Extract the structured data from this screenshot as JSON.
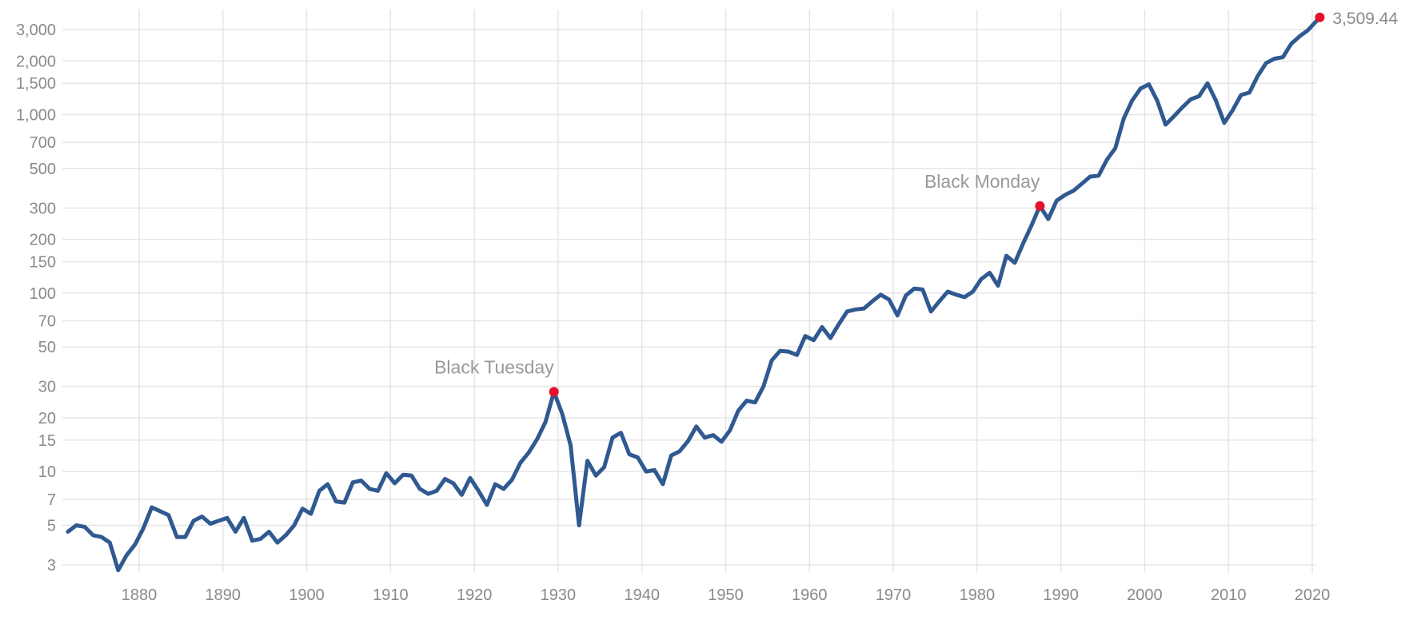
{
  "chart_data": {
    "type": "line",
    "title": "",
    "xlabel": "",
    "ylabel": "",
    "y_scale": "log",
    "grid": true,
    "legend": "none",
    "xlim": [
      1871.5,
      2022
    ],
    "ylim": [
      2.8,
      4000
    ],
    "x_ticks": [
      1880,
      1890,
      1900,
      1910,
      1920,
      1930,
      1940,
      1950,
      1960,
      1970,
      1980,
      1990,
      2000,
      2010,
      2020
    ],
    "x_tick_labels": [
      "1880",
      "1890",
      "1900",
      "1910",
      "1920",
      "1930",
      "1940",
      "1950",
      "1960",
      "1970",
      "1980",
      "1990",
      "2000",
      "2010",
      "2020"
    ],
    "y_ticks": [
      3,
      5,
      7,
      10,
      15,
      20,
      30,
      50,
      70,
      100,
      150,
      200,
      300,
      500,
      700,
      1000,
      1500,
      2000,
      3000
    ],
    "y_tick_labels": [
      "3",
      "5",
      "7",
      "10",
      "15",
      "20",
      "30",
      "50",
      "70",
      "100",
      "150",
      "200",
      "300",
      "500",
      "700",
      "1,000",
      "1,500",
      "2,000",
      "3,000"
    ],
    "colors": {
      "line": "#2f5990",
      "marker": "#e4112a",
      "grid": "#e6e6e6",
      "text": "#8a8a8a"
    },
    "series": [
      {
        "x": [
          1871.5,
          1872.5,
          1873.5,
          1874.5,
          1875.5,
          1876.5,
          1877.5,
          1878.5,
          1879.5,
          1880.5,
          1881.5,
          1882.5,
          1883.5,
          1884.5,
          1885.5,
          1886.5,
          1887.5,
          1888.5,
          1889.5,
          1890.5,
          1891.5,
          1892.5,
          1893.5,
          1894.5,
          1895.5,
          1896.5,
          1897.5,
          1898.5,
          1899.5,
          1900.5,
          1901.5,
          1902.5,
          1903.5,
          1904.5,
          1905.5,
          1906.5,
          1907.5,
          1908.5,
          1909.5,
          1910.5,
          1911.5,
          1912.5,
          1913.5,
          1914.5,
          1915.5,
          1916.5,
          1917.5,
          1918.5,
          1919.5,
          1920.5,
          1921.5,
          1922.5,
          1923.5,
          1924.5,
          1925.5,
          1926.5,
          1927.5,
          1928.5,
          1929.5,
          1930.5,
          1931.5,
          1932.5,
          1933.5,
          1934.5,
          1935.5,
          1936.5,
          1937.5,
          1938.5,
          1939.5,
          1940.5,
          1941.5,
          1942.5,
          1943.5,
          1944.5,
          1945.5,
          1946.5,
          1947.5,
          1948.5,
          1949.5,
          1950.5,
          1951.5,
          1952.5,
          1953.5,
          1954.5,
          1955.5,
          1956.5,
          1957.5,
          1958.5,
          1959.5,
          1960.5,
          1961.5,
          1962.5,
          1963.5,
          1964.5,
          1965.5,
          1966.5,
          1967.5,
          1968.5,
          1969.5,
          1970.5,
          1971.5,
          1972.5,
          1973.5,
          1974.5,
          1975.5,
          1976.5,
          1977.5,
          1978.5,
          1979.5,
          1980.5,
          1981.5,
          1982.5,
          1983.5,
          1984.5,
          1985.5,
          1986.5,
          1987.5,
          1988.5,
          1989.5,
          1990.5,
          1991.5,
          1992.5,
          1993.5,
          1994.5,
          1995.5,
          1996.5,
          1997.5,
          1998.5,
          1999.5,
          2000.5,
          2001.5,
          2002.5,
          2003.5,
          2004.5,
          2005.5,
          2006.5,
          2007.5,
          2008.5,
          2009.5,
          2010.5,
          2011.5,
          2012.5,
          2013.5,
          2014.5,
          2015.5,
          2016.5,
          2017.5,
          2018.5,
          2019.5,
          2020.9
        ],
        "values": [
          4.6,
          5.0,
          4.9,
          4.4,
          4.3,
          4.0,
          2.8,
          3.4,
          3.9,
          4.8,
          6.3,
          6.0,
          5.7,
          4.3,
          4.3,
          5.3,
          5.6,
          5.1,
          5.3,
          5.5,
          4.6,
          5.5,
          4.1,
          4.2,
          4.6,
          4.0,
          4.4,
          5.0,
          6.2,
          5.8,
          7.8,
          8.5,
          6.8,
          6.7,
          8.7,
          8.9,
          8.0,
          7.8,
          9.8,
          8.6,
          9.6,
          9.5,
          8.0,
          7.5,
          7.8,
          9.1,
          8.6,
          7.4,
          9.2,
          7.8,
          6.5,
          8.5,
          8.0,
          9.0,
          11.2,
          12.8,
          15.2,
          19.0,
          28.0,
          21.0,
          14.0,
          5.0,
          11.5,
          9.5,
          10.6,
          15.5,
          16.5,
          12.5,
          12.0,
          10.0,
          10.2,
          8.5,
          12.3,
          13.0,
          14.8,
          17.9,
          15.5,
          16.0,
          14.7,
          17.0,
          21.9,
          25.0,
          24.4,
          30.0,
          42.0,
          47.5,
          47.0,
          45.0,
          57.5,
          54.5,
          64.5,
          56.0,
          67.0,
          79.0,
          81.0,
          82.0,
          90.0,
          98.0,
          92.0,
          75.0,
          97.0,
          106.0,
          105.0,
          79.0,
          90.0,
          102.0,
          98.0,
          95.0,
          102.0,
          120.0,
          130.0,
          110.0,
          162.0,
          148.0,
          190.0,
          240.0,
          308.0,
          260.0,
          330.0,
          355.0,
          375.0,
          410.0,
          450.0,
          455.0,
          560.0,
          650.0,
          950.0,
          1200.0,
          1400.0,
          1480.0,
          1200.0,
          880.0,
          980.0,
          1100.0,
          1220.0,
          1270.0,
          1500.0,
          1200.0,
          900.0,
          1060.0,
          1290.0,
          1330.0,
          1650.0,
          1950.0,
          2060.0,
          2100.0,
          2500.0,
          2750.0,
          2980.0,
          3509.44
        ]
      }
    ],
    "annotations": [
      {
        "label": "Black Tuesday",
        "x": 1929.5,
        "y": 28.0
      },
      {
        "label": "Black Monday",
        "x": 1987.5,
        "y": 308.0
      }
    ],
    "last_point": {
      "x": 2020.9,
      "y": 3509.44,
      "label": "3,509.44"
    }
  }
}
